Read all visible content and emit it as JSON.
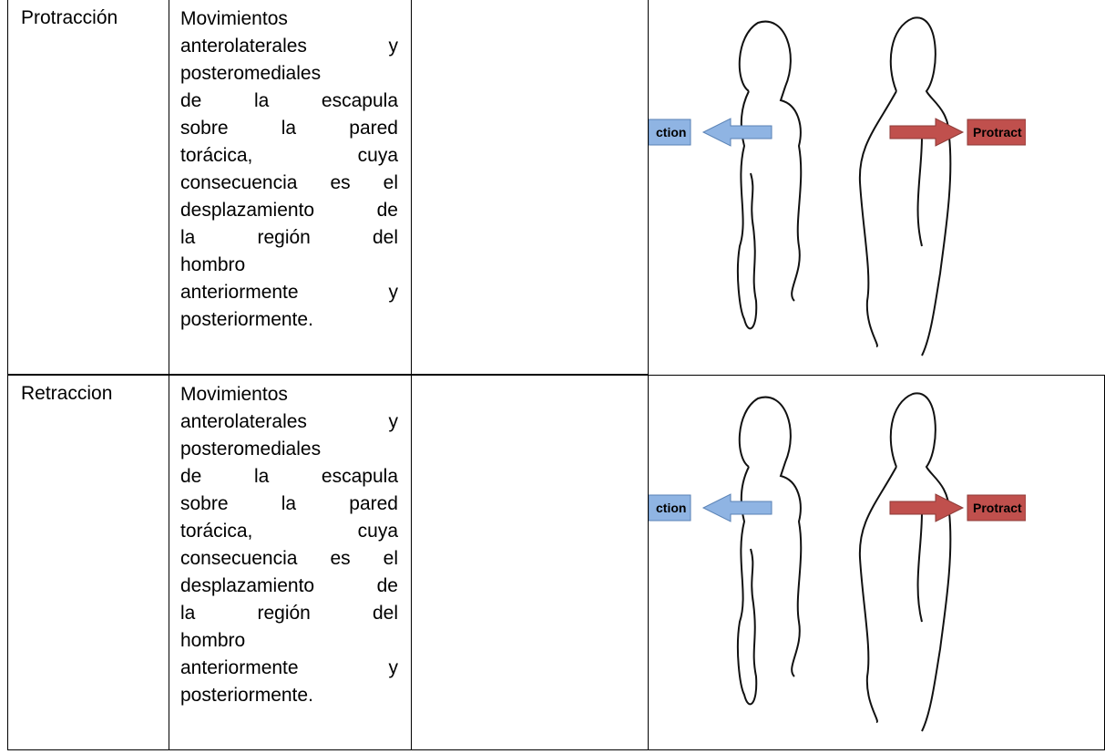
{
  "table": {
    "rows": [
      {
        "term": "Protracción",
        "description_lines": [
          "Movimientos",
          "anterolaterales y",
          "posteromediales",
          "de la escapula",
          "sobre la pared",
          "torácica, cuya",
          "consecuencia es el",
          "desplazamiento de",
          "la región del",
          "hombro",
          "anteriormente y",
          "posteriormente."
        ],
        "figure": {
          "left_label": "ction",
          "right_label": "Protract"
        }
      },
      {
        "term": "Retraccion",
        "description_lines": [
          "Movimientos",
          "anterolaterales y",
          "posteromediales",
          "de la escapula",
          "sobre la pared",
          "torácica, cuya",
          "consecuencia es el",
          "desplazamiento de",
          "la región del",
          "hombro",
          "anteriormente y",
          "posteriormente."
        ],
        "figure": {
          "left_label": "ction",
          "right_label": "Protract"
        }
      }
    ]
  }
}
